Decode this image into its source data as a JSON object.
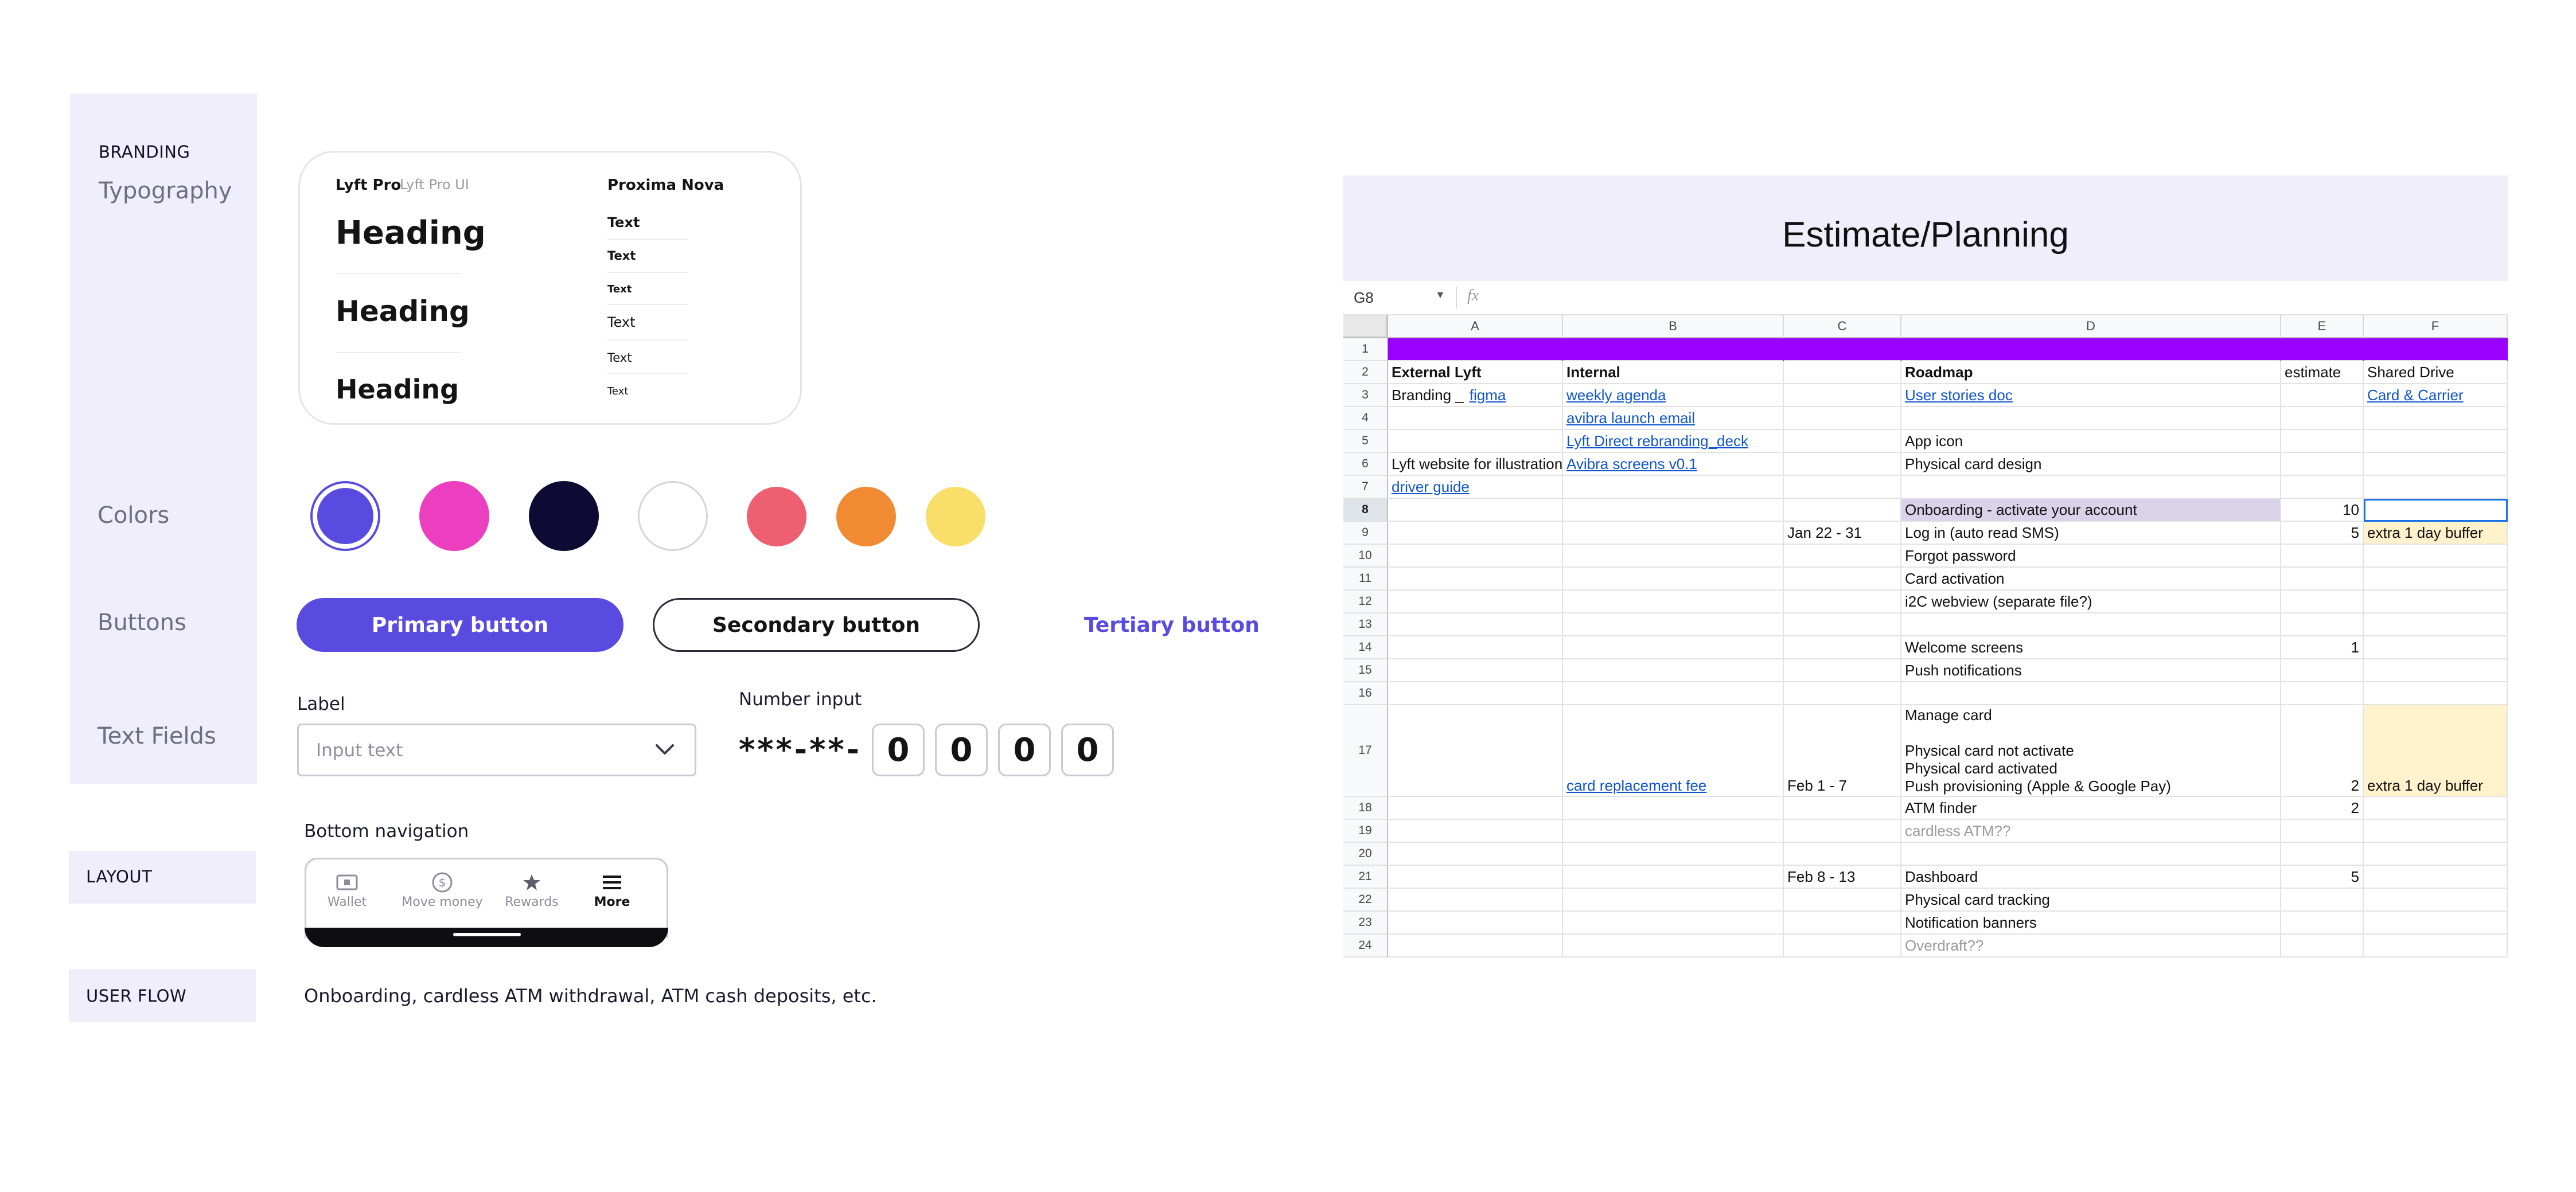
{
  "branding": {
    "section_label": "BRANDING",
    "typography_label": "Typography",
    "colors_label": "Colors",
    "buttons_label": "Buttons",
    "text_fields_label": "Text Fields"
  },
  "typography": {
    "font_primary": "Lyft Pro",
    "font_primary_ui": "Lyft Pro UI",
    "font_secondary": "Proxima Nova",
    "headings": [
      "Heading",
      "Heading",
      "Heading"
    ],
    "text_samples": [
      "Text",
      "Text",
      "Text",
      "Text",
      "Text",
      "Text"
    ]
  },
  "colors": {
    "swatches": [
      "#5a4be0",
      "#ec3fbf",
      "#0d0b33",
      "#ffffff",
      "#ef5f72",
      "#f08a33",
      "#f9de6a"
    ]
  },
  "buttons": {
    "primary_label": "Primary button",
    "secondary_label": "Secondary button",
    "tertiary_label": "Tertiary button"
  },
  "text_fields": {
    "label": "Label",
    "placeholder": "Input text",
    "number_input_label": "Number input",
    "masked_value": "***-**-",
    "digits": [
      "0",
      "0",
      "0",
      "0"
    ]
  },
  "bottom_navigation": {
    "title": "Bottom navigation",
    "items": [
      {
        "label": "Wallet",
        "icon": "wallet-icon"
      },
      {
        "label": "Move money",
        "icon": "dollar-coin-icon"
      },
      {
        "label": "Rewards",
        "icon": "star-icon"
      },
      {
        "label": "More",
        "icon": "menu-icon"
      }
    ]
  },
  "layout": {
    "label": "LAYOUT"
  },
  "user_flow": {
    "label": "USER FLOW",
    "description": "Onboarding, cardless ATM withdrawal, ATM cash deposits, etc."
  },
  "spreadsheet": {
    "title": "Estimate/Planning",
    "name_box": "G8",
    "formula_icon": "fx",
    "columns": [
      "A",
      "B",
      "C",
      "D",
      "E",
      "F"
    ],
    "rows": {
      "1": {},
      "2": {
        "A": "External Lyft",
        "B": "Internal",
        "D": "Roadmap",
        "E": "estimate",
        "F": "Shared Drive"
      },
      "3": {
        "A": "Branding _",
        "A_link": "figma",
        "B": "weekly agenda",
        "D": "User stories doc",
        "F": "Card & Carrier"
      },
      "4": {
        "B": "avibra launch email"
      },
      "5": {
        "B": "Lyft Direct rebranding_deck",
        "D": "App icon"
      },
      "6": {
        "A": "Lyft website for illustration",
        "B": "Avibra screens v0.1",
        "D": "Physical card design"
      },
      "7": {
        "A": "driver guide"
      },
      "8": {
        "D": "Onboarding - activate your account",
        "E": "10"
      },
      "9": {
        "C": "Jan 22 - 31",
        "D": "Log in (auto read SMS)",
        "E": "5",
        "F": "extra 1 day buffer"
      },
      "10": {
        "D": "Forgot password"
      },
      "11": {
        "D": "Card activation"
      },
      "12": {
        "D": "i2C webview (separate file?)"
      },
      "13": {},
      "14": {
        "D": "Welcome screens",
        "E": "1"
      },
      "15": {
        "D": "Push notifications"
      },
      "16": {},
      "17": {
        "B": "card replacement fee",
        "C": "Feb 1 - 7",
        "D_lines": [
          "Manage card",
          "",
          "Physical card not activate",
          "Physical card activated",
          "Push provisioning (Apple & Google Pay)"
        ],
        "E": "2",
        "F": "extra 1 day buffer"
      },
      "18": {
        "D": "ATM finder",
        "E": "2"
      },
      "19": {
        "D": "cardless ATM??"
      },
      "20": {},
      "21": {
        "C": "Feb 8 - 13",
        "D": "Dashboard",
        "E": "5"
      },
      "22": {
        "D": "Physical card tracking"
      },
      "23": {
        "D": "Notification banners"
      },
      "24": {
        "D": "Overdraft??"
      }
    },
    "row_numbers": [
      "1",
      "2",
      "3",
      "4",
      "5",
      "6",
      "7",
      "8",
      "9",
      "10",
      "11",
      "12",
      "13",
      "14",
      "15",
      "16",
      "17",
      "18",
      "19",
      "20",
      "21",
      "22",
      "23",
      "24"
    ]
  }
}
